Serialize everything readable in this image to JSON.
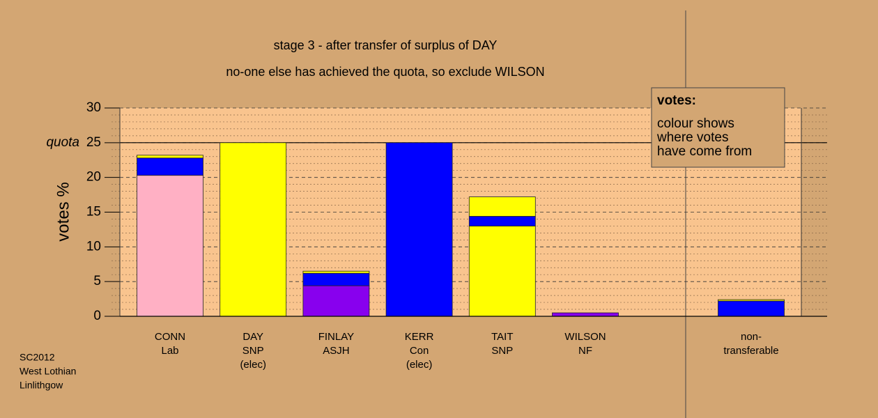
{
  "chart_data": {
    "type": "stacked-bar",
    "title_lines": [
      "stage 3 - after transfer of surplus of DAY",
      "no-one else has achieved the quota, so exclude WILSON"
    ],
    "y_label": "votes %",
    "ylim": [
      0,
      30
    ],
    "yticks": [
      0,
      5,
      10,
      15,
      20,
      25,
      30
    ],
    "yminorticks": [
      1,
      2,
      3,
      4,
      6,
      7,
      8,
      9,
      11,
      12,
      13,
      14,
      16,
      17,
      18,
      19,
      21,
      22,
      23,
      24,
      26,
      27,
      28,
      29
    ],
    "grid": true,
    "quota": 25,
    "quota_label": "quota",
    "categories": [
      [
        "CONN",
        "Lab"
      ],
      [
        "DAY",
        "SNP",
        "(elec)"
      ],
      [
        "FINLAY",
        "ASJH"
      ],
      [
        "KERR",
        "Con",
        "(elec)"
      ],
      [
        "TAIT",
        "SNP"
      ],
      [
        "WILSON",
        "NF"
      ]
    ],
    "stacks": [
      [
        {
          "value": 20.3,
          "color": "#ffb0c4"
        },
        {
          "value": 2.5,
          "color": "#0000ff"
        },
        {
          "value": 0.4,
          "color": "#ffff00"
        }
      ],
      [
        {
          "value": 25,
          "color": "#ffff00"
        }
      ],
      [
        {
          "value": 4.4,
          "color": "#8800ee"
        },
        {
          "value": 1.8,
          "color": "#0000ff"
        },
        {
          "value": 0.3,
          "color": "#ffff00"
        }
      ],
      [
        {
          "value": 25,
          "color": "#0000ff"
        }
      ],
      [
        {
          "value": 13.0,
          "color": "#ffff00"
        },
        {
          "value": 1.4,
          "color": "#0000ff"
        },
        {
          "value": 2.8,
          "color": "#ffff00"
        }
      ],
      [
        {
          "value": 0.5,
          "color": "#8800ee"
        }
      ]
    ],
    "extra_category": [
      "non-",
      "transferable"
    ],
    "extra_stack": [
      {
        "value": 2.2,
        "color": "#0000ff"
      },
      {
        "value": 0.2,
        "color": "#ffff00"
      }
    ],
    "legend_title": "votes:",
    "legend_lines": [
      "colour shows",
      "where votes",
      "have come from"
    ],
    "footer_lines": [
      "SC2012",
      "West Lothian",
      "Linlithgow"
    ]
  }
}
